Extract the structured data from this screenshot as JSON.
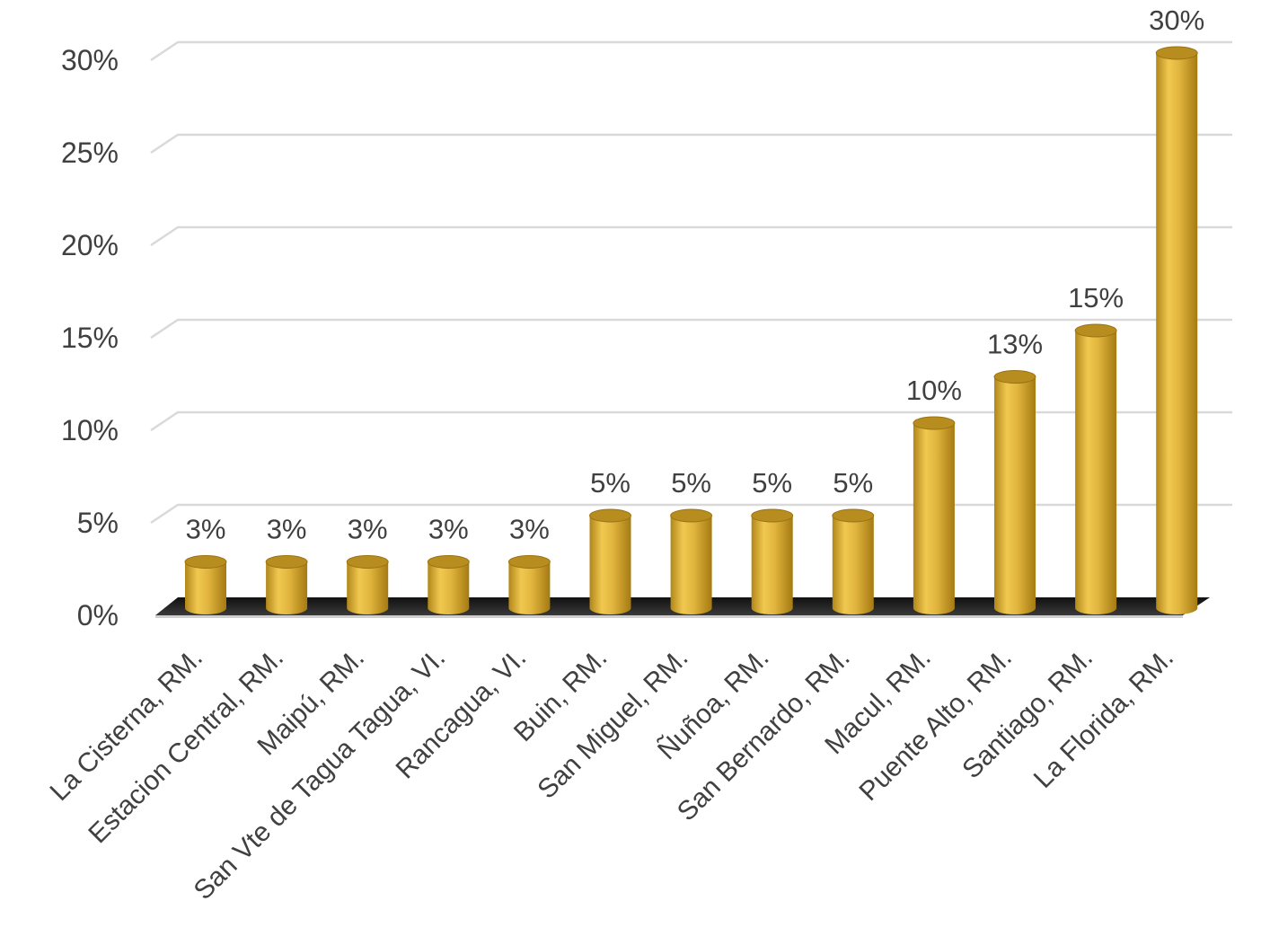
{
  "chart_data": {
    "type": "bar",
    "style": "3d-cylinder",
    "categories": [
      "La Cisterna, RM.",
      "Estacion Central, RM.",
      "Maipú, RM.",
      "San Vte de Tagua Tagua, VI.",
      "Rancagua, VI.",
      "Buin, RM.",
      "San Miguel, RM.",
      "Ñuñoa, RM.",
      "San Bernardo, RM.",
      "Macul, RM.",
      "Puente Alto, RM.",
      "Santiago, RM.",
      "La Florida, RM."
    ],
    "values": [
      0.025,
      0.025,
      0.025,
      0.025,
      0.025,
      0.05,
      0.05,
      0.05,
      0.05,
      0.1,
      0.125,
      0.15,
      0.3
    ],
    "data_labels": [
      "3%",
      "3%",
      "3%",
      "3%",
      "3%",
      "5%",
      "5%",
      "5%",
      "5%",
      "10%",
      "13%",
      "15%",
      "30%"
    ],
    "y_ticks": [
      "0%",
      "5%",
      "10%",
      "15%",
      "20%",
      "25%",
      "30%"
    ],
    "ylim": [
      0,
      0.3
    ],
    "title": "",
    "xlabel": "",
    "ylabel": "",
    "grid": true,
    "legend": "none",
    "colors": {
      "bar_light": "#f4cf55",
      "bar_mid": "#d9ac33",
      "bar_dark": "#a57a12",
      "bar_top": "#b88d1f",
      "floor": "#1f1f1f",
      "grid": "#d9d9d9",
      "text": "#404040"
    }
  }
}
